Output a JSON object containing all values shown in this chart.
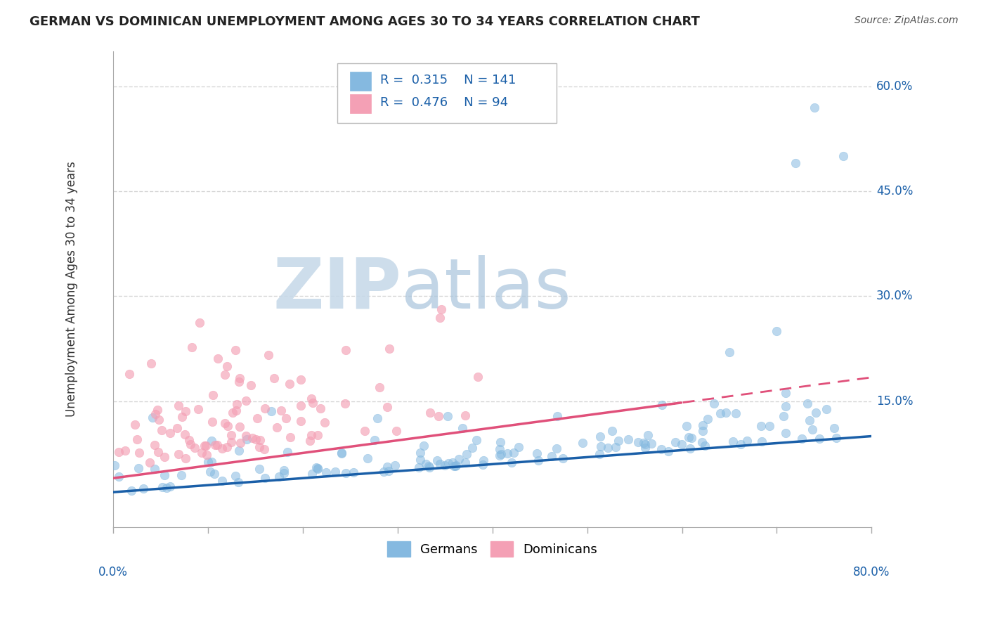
{
  "title": "GERMAN VS DOMINICAN UNEMPLOYMENT AMONG AGES 30 TO 34 YEARS CORRELATION CHART",
  "source": "Source: ZipAtlas.com",
  "ylabel": "Unemployment Among Ages 30 to 34 years",
  "ytick_labels": [
    "15.0%",
    "30.0%",
    "45.0%",
    "60.0%"
  ],
  "ytick_values": [
    0.15,
    0.3,
    0.45,
    0.6
  ],
  "xlim": [
    0.0,
    0.8
  ],
  "ylim": [
    -0.03,
    0.65
  ],
  "german_color": "#85b9e0",
  "dominican_color": "#f4a0b5",
  "german_line_color": "#1a5fa8",
  "dominican_line_color": "#e0507a",
  "R_german": 0.315,
  "N_german": 141,
  "R_dominican": 0.476,
  "N_dominican": 94,
  "watermark_zip_color": "#c8d8e8",
  "watermark_atlas_color": "#b0c8e0",
  "background_color": "#ffffff",
  "grid_color": "#cccccc",
  "legend_text_color": "#1a5fa8",
  "axis_label_color": "#333333",
  "tick_label_color": "#1a5fa8"
}
